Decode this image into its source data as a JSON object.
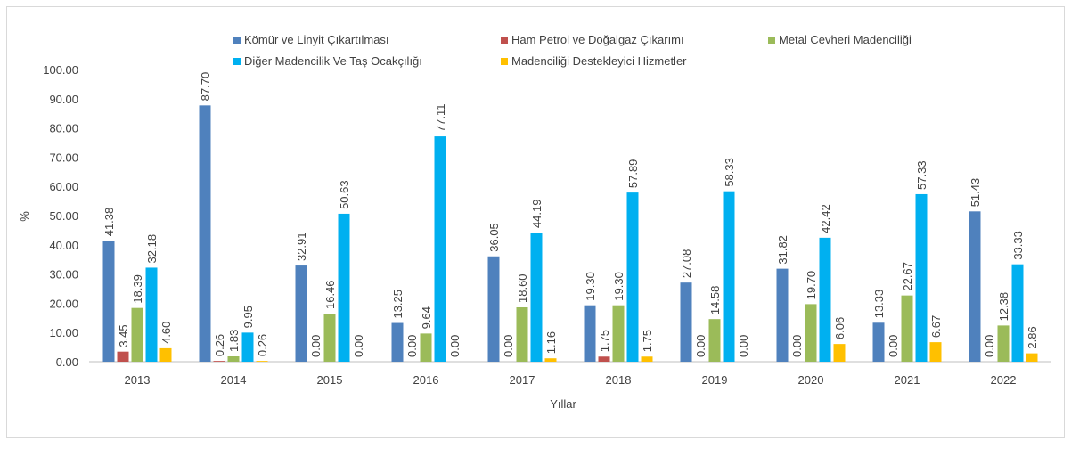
{
  "chart_data": {
    "type": "bar",
    "x_label": "Yıllar",
    "y_label": "%",
    "legend": "top",
    "grid": false,
    "categories": [
      "2013",
      "2014",
      "2015",
      "2016",
      "2017",
      "2018",
      "2019",
      "2020",
      "2021",
      "2022"
    ],
    "ylim": [
      0,
      100
    ],
    "yticks": [
      {
        "value": 0,
        "label": "0.00"
      },
      {
        "value": 10,
        "label": "10.00"
      },
      {
        "value": 20,
        "label": "20.00"
      },
      {
        "value": 30,
        "label": "30.00"
      },
      {
        "value": 40,
        "label": "40.00"
      },
      {
        "value": 50,
        "label": "50.00"
      },
      {
        "value": 60,
        "label": "60.00"
      },
      {
        "value": 70,
        "label": "70.00"
      },
      {
        "value": 80,
        "label": "80.00"
      },
      {
        "value": 90,
        "label": "90.00"
      },
      {
        "value": 100,
        "label": "100.00"
      }
    ],
    "series": [
      {
        "name": "Kömür ve Linyit Çıkartılması",
        "color": "#4f81bd",
        "values": [
          41.38,
          87.7,
          32.91,
          13.25,
          36.05,
          19.3,
          27.08,
          31.82,
          13.33,
          51.43
        ],
        "value_labels": [
          "41.38",
          "87.70",
          "32.91",
          "13.25",
          "36.05",
          "19.30",
          "27.08",
          "31.82",
          "13.33",
          "51.43"
        ]
      },
      {
        "name": "Ham Petrol ve Doğalgaz Çıkarımı",
        "color": "#c0504d",
        "values": [
          3.45,
          0.26,
          0,
          0,
          0,
          1.75,
          0,
          0,
          0,
          0
        ],
        "value_labels": [
          "3.45",
          "0.26",
          "0.00",
          "0.00",
          "0.00",
          "1.75",
          "0.00",
          "0.00",
          "0.00",
          "0.00"
        ]
      },
      {
        "name": "Metal Cevheri Madenciliği",
        "color": "#9bbb59",
        "values": [
          18.39,
          1.83,
          16.46,
          9.64,
          18.6,
          19.3,
          14.58,
          19.7,
          22.67,
          12.38
        ],
        "value_labels": [
          "18.39",
          "1.83",
          "16.46",
          "9.64",
          "18.60",
          "19.30",
          "14.58",
          "19.70",
          "22.67",
          "12.38"
        ]
      },
      {
        "name": "Diğer Madencilik Ve Taş Ocakçılığı",
        "color": "#00b0f0",
        "values": [
          32.18,
          9.95,
          50.63,
          77.11,
          44.19,
          57.89,
          58.33,
          42.42,
          57.33,
          33.33
        ],
        "value_labels": [
          "32.18",
          "9.95",
          "50.63",
          "77.11",
          "44.19",
          "57.89",
          "58.33",
          "42.42",
          "57.33",
          "33.33"
        ]
      },
      {
        "name": "Madenciliği Destekleyici Hizmetler",
        "color": "#ffc000",
        "values": [
          4.6,
          0.26,
          0,
          0,
          1.16,
          1.75,
          0,
          6.06,
          6.67,
          2.86
        ],
        "value_labels": [
          "4.60",
          "0.26",
          "0.00",
          "0.00",
          "1.16",
          "1.75",
          "0.00",
          "6.06",
          "6.67",
          "2.86"
        ]
      }
    ]
  }
}
